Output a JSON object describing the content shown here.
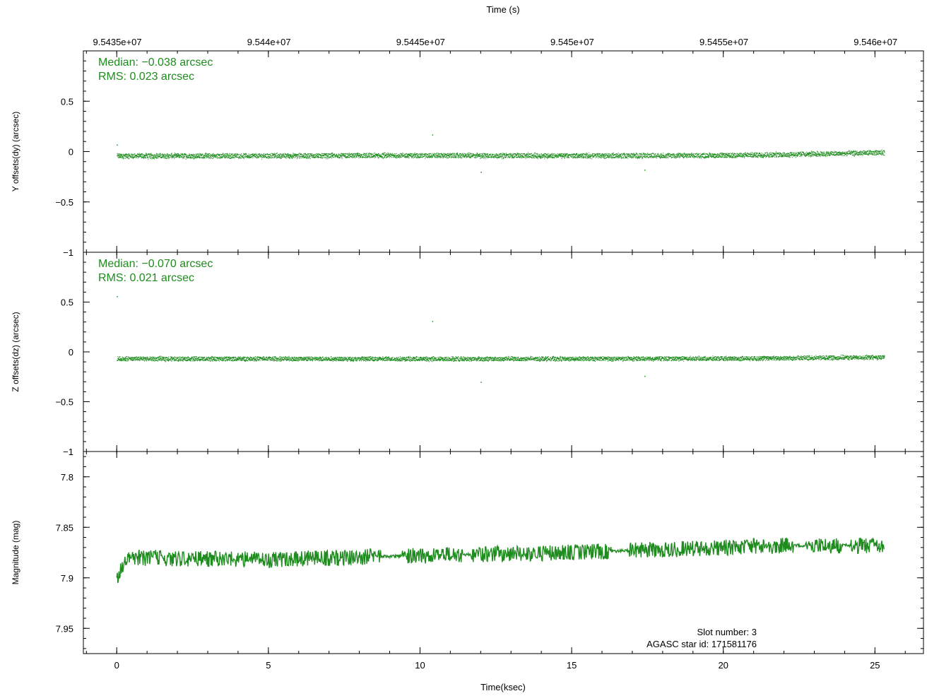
{
  "colors": {
    "series": "#1f8c1f",
    "axis": "#000000",
    "background": "#ffffff"
  },
  "chart_data": {
    "type": "scatter",
    "top_axis": {
      "label": "Time (s)",
      "ticks": [
        "9.5435e+07",
        "9.544e+07",
        "9.5445e+07",
        "9.545e+07",
        "9.5455e+07",
        "9.546e+07"
      ],
      "tick_values": [
        95435000,
        95440000,
        95445000,
        95450000,
        95455000,
        95460000
      ]
    },
    "bottom_axis": {
      "label": "Time(ksec)",
      "ticks": [
        "0",
        "5",
        "10",
        "15",
        "20",
        "25"
      ],
      "tick_values": [
        0,
        5,
        10,
        15,
        20,
        25
      ],
      "xlim": [
        -1.1,
        26.6
      ]
    },
    "panels": [
      {
        "id": "dy",
        "type": "scatter",
        "ylabel": "Y offsets(dy) (arcsec)",
        "ylim": [
          -1,
          1
        ],
        "yticks": [
          "0.5",
          "0",
          "−0.5",
          "−1"
        ],
        "ytick_values": [
          0.5,
          0,
          -0.5,
          -1
        ],
        "annotations": [
          "Median: −0.038 arcsec",
          "RMS: 0.023 arcsec"
        ],
        "trend": {
          "x": [
            0,
            5,
            10,
            15,
            20,
            23,
            25.3
          ],
          "y": [
            -0.045,
            -0.043,
            -0.04,
            -0.042,
            -0.04,
            -0.025,
            -0.012
          ]
        },
        "scatter_width": 0.045,
        "outliers": {
          "x": [
            0.0,
            10.4,
            12.0,
            17.4
          ],
          "y": [
            0.07,
            0.17,
            -0.2,
            -0.18
          ]
        }
      },
      {
        "id": "dz",
        "type": "scatter",
        "ylabel": "Z offsets(dz) (arcsec)",
        "ylim": [
          -1,
          1
        ],
        "yticks": [
          "0.5",
          "0",
          "−0.5",
          "−1"
        ],
        "ytick_values": [
          0.5,
          0,
          -0.5,
          -1
        ],
        "annotations": [
          "Median: −0.070 arcsec",
          "RMS: 0.021 arcsec"
        ],
        "trend": {
          "x": [
            0,
            5,
            10,
            15,
            20,
            25.3
          ],
          "y": [
            -0.07,
            -0.07,
            -0.072,
            -0.07,
            -0.068,
            -0.055
          ]
        },
        "scatter_width": 0.04,
        "outliers": {
          "x": [
            0.0,
            10.4,
            12.0,
            17.4
          ],
          "y": [
            0.56,
            0.31,
            -0.3,
            -0.24
          ]
        }
      },
      {
        "id": "mag",
        "type": "line",
        "ylabel": "Magnitude (mag)",
        "ylim": [
          7.975,
          7.775
        ],
        "yticks": [
          "7.8",
          "7.85",
          "7.9",
          "7.95"
        ],
        "ytick_values": [
          7.8,
          7.85,
          7.9,
          7.95
        ],
        "annotations": [
          "Slot number: 3",
          "AGASC star id: 171581176"
        ],
        "trend": {
          "x": [
            0,
            0.3,
            5,
            10,
            15,
            20,
            22,
            25.3
          ],
          "y": [
            7.9,
            7.88,
            7.882,
            7.878,
            7.875,
            7.87,
            7.868,
            7.868
          ]
        },
        "scatter_width": 0.008
      }
    ]
  }
}
